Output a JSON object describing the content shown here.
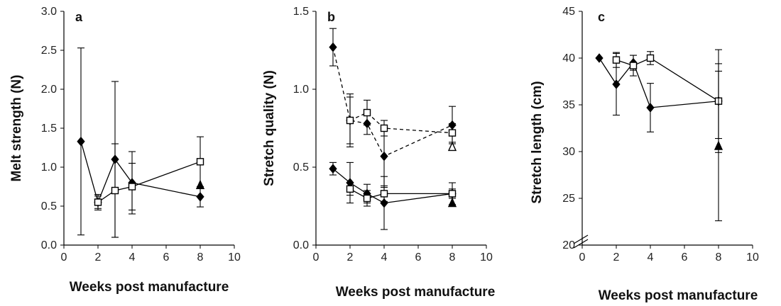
{
  "chart_data": [
    {
      "type": "scatter",
      "panel_label": "a",
      "xlabel": "Weeks post manufacture",
      "ylabel": "Melt strength (N)",
      "xlim": [
        0,
        10
      ],
      "ylim": [
        0,
        3
      ],
      "xticks": [
        0,
        2,
        4,
        6,
        8,
        10
      ],
      "yticks": [
        0,
        0.5,
        1,
        1.5,
        2,
        2.5,
        3
      ],
      "ytick_decimals": 1,
      "axis_break": false,
      "series": [
        {
          "marker": "diamond-filled",
          "line": "solid",
          "points": [
            {
              "x": 1,
              "y": 1.33,
              "err": 1.2
            },
            {
              "x": 2,
              "y": 0.55,
              "err": 0.08
            },
            {
              "x": 3,
              "y": 1.1,
              "err": 1.0
            },
            {
              "x": 4,
              "y": 0.8,
              "err": 0.4
            },
            {
              "x": 8,
              "y": 0.62,
              "err": 0.13
            }
          ]
        },
        {
          "marker": "square-open",
          "line": "solid",
          "points": [
            {
              "x": 2,
              "y": 0.55,
              "err": 0.1
            },
            {
              "x": 3,
              "y": 0.7,
              "err": 0.6
            },
            {
              "x": 4,
              "y": 0.75,
              "err": 0.3
            },
            {
              "x": 8,
              "y": 1.07,
              "err": 0.32
            }
          ]
        },
        {
          "marker": "triangle-filled",
          "line": "none",
          "points": [
            {
              "x": 8,
              "y": 0.77,
              "err": 0
            }
          ]
        }
      ]
    },
    {
      "type": "scatter",
      "panel_label": "b",
      "xlabel": "Weeks post manufacture",
      "ylabel": "Stretch quality (N)",
      "xlim": [
        0,
        10
      ],
      "ylim": [
        0,
        1.5
      ],
      "xticks": [
        0,
        2,
        4,
        6,
        8,
        10
      ],
      "yticks": [
        0,
        0.5,
        1,
        1.5
      ],
      "ytick_decimals": 1,
      "axis_break": false,
      "series": [
        {
          "marker": "diamond-filled",
          "line": "dashed",
          "points": [
            {
              "x": 1,
              "y": 1.27,
              "err": 0.12
            },
            {
              "x": 2,
              "y": 0.8,
              "err": 0.15
            },
            {
              "x": 3,
              "y": 0.78,
              "err": 0.07
            },
            {
              "x": 4,
              "y": 0.57,
              "err": 0.2
            },
            {
              "x": 8,
              "y": 0.77,
              "err": 0.12
            }
          ]
        },
        {
          "marker": "square-open",
          "line": "dashed",
          "points": [
            {
              "x": 2,
              "y": 0.8,
              "err": 0.17
            },
            {
              "x": 3,
              "y": 0.85,
              "err": 0.08
            },
            {
              "x": 4,
              "y": 0.75,
              "err": 0.05
            },
            {
              "x": 8,
              "y": 0.72,
              "err": 0.06
            }
          ]
        },
        {
          "marker": "triangle-open",
          "line": "none",
          "points": [
            {
              "x": 8,
              "y": 0.63,
              "err": 0
            }
          ]
        },
        {
          "marker": "diamond-filled",
          "line": "solid",
          "points": [
            {
              "x": 1,
              "y": 0.49,
              "err": 0.04
            },
            {
              "x": 2,
              "y": 0.4,
              "err": 0.13
            },
            {
              "x": 3,
              "y": 0.33,
              "err": 0.06
            },
            {
              "x": 4,
              "y": 0.27,
              "err": 0.17
            },
            {
              "x": 8,
              "y": 0.33,
              "err": 0.07
            }
          ]
        },
        {
          "marker": "square-open",
          "line": "solid",
          "points": [
            {
              "x": 2,
              "y": 0.36,
              "err": 0.04
            },
            {
              "x": 3,
              "y": 0.3,
              "err": 0.05
            },
            {
              "x": 4,
              "y": 0.33,
              "err": 0.05
            },
            {
              "x": 8,
              "y": 0.33,
              "err": 0.03
            }
          ]
        },
        {
          "marker": "triangle-filled",
          "line": "none",
          "points": [
            {
              "x": 8,
              "y": 0.27,
              "err": 0
            }
          ]
        }
      ]
    },
    {
      "type": "scatter",
      "panel_label": "c",
      "xlabel": "Weeks post manufacture",
      "ylabel": "Stretch length (cm)",
      "xlim": [
        0,
        10
      ],
      "ylim": [
        20,
        45
      ],
      "xticks": [
        0,
        2,
        4,
        6,
        8,
        10
      ],
      "yticks": [
        20,
        25,
        30,
        35,
        40,
        45
      ],
      "ytick_decimals": 0,
      "axis_break": true,
      "series": [
        {
          "marker": "diamond-filled",
          "line": "solid",
          "points": [
            {
              "x": 1,
              "y": 40,
              "err": 0
            },
            {
              "x": 2,
              "y": 37.2,
              "err": 3.3
            },
            {
              "x": 3,
              "y": 39.5,
              "err": 0.8
            },
            {
              "x": 4,
              "y": 34.7,
              "err": 2.6
            },
            {
              "x": 8,
              "y": 35.4,
              "err": 4.0
            }
          ]
        },
        {
          "marker": "square-open",
          "line": "solid",
          "points": [
            {
              "x": 2,
              "y": 39.8,
              "err": 0.8
            },
            {
              "x": 3,
              "y": 39.2,
              "err": 1.1
            },
            {
              "x": 4,
              "y": 40.0,
              "err": 0.7
            },
            {
              "x": 8,
              "y": 35.4,
              "err": 5.5
            }
          ]
        },
        {
          "marker": "triangle-filled",
          "line": "none",
          "points": [
            {
              "x": 8,
              "y": 30.6,
              "err": 8.0
            }
          ]
        }
      ]
    }
  ]
}
